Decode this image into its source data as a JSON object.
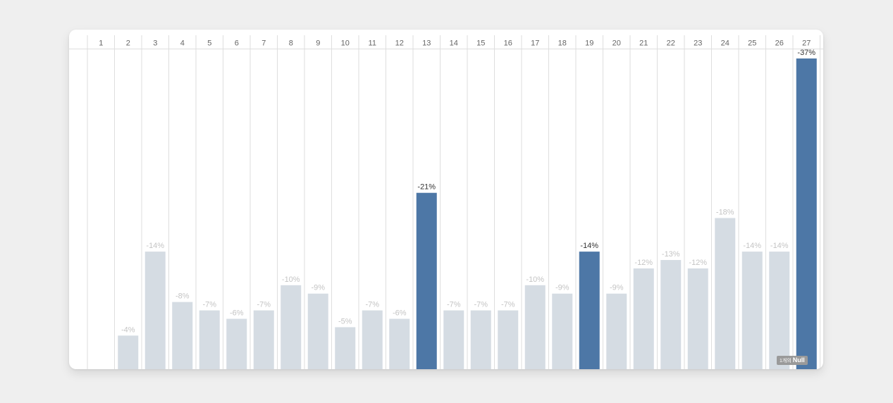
{
  "chart_data": {
    "type": "bar",
    "categories": [
      "1",
      "2",
      "3",
      "4",
      "5",
      "6",
      "7",
      "8",
      "9",
      "10",
      "11",
      "12",
      "13",
      "14",
      "15",
      "16",
      "17",
      "18",
      "19",
      "20",
      "21",
      "22",
      "23",
      "24",
      "25",
      "26",
      "27"
    ],
    "values": [
      null,
      -4,
      -14,
      -8,
      -7,
      -6,
      -7,
      -10,
      -9,
      -5,
      -7,
      -6,
      -21,
      -7,
      -7,
      -7,
      -10,
      -9,
      -14,
      -9,
      -12,
      -13,
      -12,
      -18,
      -14,
      -14,
      -37
    ],
    "highlighted": [
      "13",
      "19",
      "27"
    ],
    "data_labels": [
      "",
      "-4%",
      "-14%",
      "-8%",
      "-7%",
      "-6%",
      "-7%",
      "-10%",
      "-9%",
      "-5%",
      "-7%",
      "-6%",
      "-21%",
      "-7%",
      "-7%",
      "-7%",
      "-10%",
      "-9%",
      "-14%",
      "-9%",
      "-12%",
      "-13%",
      "-12%",
      "-18%",
      "-14%",
      "-14%",
      "-37%"
    ],
    "axis_position": "top",
    "grid": "vertical",
    "colors": {
      "highlight": "#4d77a6",
      "normal": "#d5dce3",
      "label_normal": "#c4c4c4",
      "label_highlight": "#333333",
      "label_inside": "#ffffff",
      "header_text": "#666666",
      "grid": "#dedede"
    },
    "null_indicator": {
      "count": "1개의",
      "label": "Null"
    }
  }
}
